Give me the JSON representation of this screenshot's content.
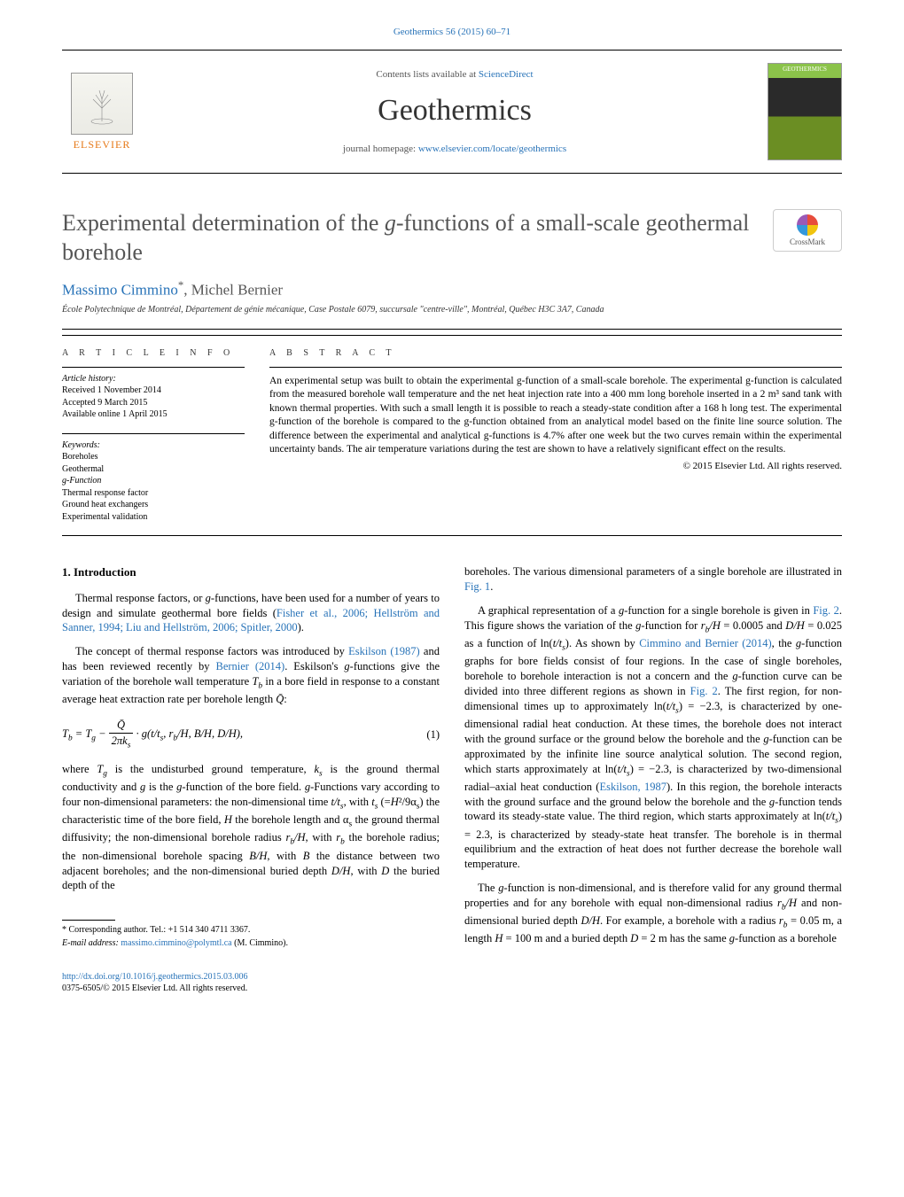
{
  "journal_ref": "Geothermics 56 (2015) 60–71",
  "header": {
    "publisher_name": "ELSEVIER",
    "contents_prefix": "Contents lists available at ",
    "contents_link": "ScienceDirect",
    "journal_name": "Geothermics",
    "homepage_prefix": "journal homepage: ",
    "homepage_link": "www.elsevier.com/locate/geothermics"
  },
  "crossmark_label": "CrossMark",
  "title_html": "Experimental determination of the <em>g</em>-functions of a small-scale geothermal borehole",
  "authors_html": "<a>Massimo Cimmino</a><sup>*</sup>, Michel Bernier",
  "affiliation": "École Polytechnique de Montréal, Département de génie mécanique, Case Postale 6079, succursale \"centre-ville\", Montréal, Québec H3C 3A7, Canada",
  "article_info": {
    "label": "A R T I C L E   I N F O",
    "history_label": "Article history:",
    "received": "Received 1 November 2014",
    "accepted": "Accepted 9 March 2015",
    "online": "Available online 1 April 2015",
    "keywords_label": "Keywords:",
    "keywords": [
      "Boreholes",
      "Geothermal",
      "g-Function",
      "Thermal response factor",
      "Ground heat exchangers",
      "Experimental validation"
    ]
  },
  "abstract": {
    "label": "A B S T R A C T",
    "text": "An experimental setup was built to obtain the experimental g-function of a small-scale borehole. The experimental g-function is calculated from the measured borehole wall temperature and the net heat injection rate into a 400 mm long borehole inserted in a 2 m³ sand tank with known thermal properties. With such a small length it is possible to reach a steady-state condition after a 168 h long test. The experimental g-function of the borehole is compared to the g-function obtained from an analytical model based on the finite line source solution. The difference between the experimental and analytical g-functions is 4.7% after one week but the two curves remain within the experimental uncertainty bands. The air temperature variations during the test are shown to have a relatively significant effect on the results.",
    "copyright": "© 2015 Elsevier Ltd. All rights reserved."
  },
  "body": {
    "section_heading": "1. Introduction",
    "p1_html": "Thermal response factors, or <em>g</em>-functions, have been used for a number of years to design and simulate geothermal bore fields (<a>Fisher et al., 2006; Hellström and Sanner, 1994; Liu and Hellström, 2006; Spitler, 2000</a>).",
    "p2_html": "The concept of thermal response factors was introduced by <a>Eskilson (1987)</a> and has been reviewed recently by <a>Bernier (2014)</a>. Eskilson's <em>g</em>-functions give the variation of the borehole wall temperature <em>T<sub>b</sub></em> in a bore field in response to a constant average heat extraction rate per borehole length <em>Q̄</em>:",
    "eq1_html": "<span class='equation-body'>T<sub>b</sub> = T<sub>g</sub> − <span class='frac'><span class='num'>Q̄</span><span class='den'>2πk<sub>s</sub></span></span> · g(t/t<sub>s</sub>, r<sub>b</sub>/H, B/H, D/H),</span><span class='equation-num'>(1)</span>",
    "p3_html": "where <em>T<sub>g</sub></em> is the undisturbed ground temperature, <em>k<sub>s</sub></em> is the ground thermal conductivity and <em>g</em> is the <em>g</em>-function of the bore field. <em>g</em>-Functions vary according to four non-dimensional parameters: the non-dimensional time <em>t/t<sub>s</sub></em>, with <em>t<sub>s</sub></em> (=<em>H</em>²/9α<sub>s</sub>) the characteristic time of the bore field, <em>H</em> the borehole length and α<sub>s</sub> the ground thermal diffusivity; the non-dimensional borehole radius <em>r<sub>b</sub>/H</em>, with <em>r<sub>b</sub></em> the borehole radius; the non-dimensional borehole spacing <em>B/H</em>, with <em>B</em> the distance between two adjacent boreholes; and the non-dimensional buried depth <em>D/H</em>, with <em>D</em> the buried depth of the",
    "p4_html": "boreholes. The various dimensional parameters of a single borehole are illustrated in <a>Fig. 1</a>.",
    "p5_html": "A graphical representation of a <em>g</em>-function for a single borehole is given in <a>Fig. 2</a>. This figure shows the variation of the <em>g</em>-function for <em>r<sub>b</sub>/H</em> = 0.0005 and <em>D/H</em> = 0.025 as a function of ln(<em>t/t<sub>s</sub></em>). As shown by <a>Cimmino and Bernier (2014)</a>, the <em>g</em>-function graphs for bore fields consist of four regions. In the case of single boreholes, borehole to borehole interaction is not a concern and the <em>g</em>-function curve can be divided into three different regions as shown in <a>Fig. 2</a>. The first region, for non-dimensional times up to approximately ln(<em>t/t<sub>s</sub></em>) = −2.3, is characterized by one-dimensional radial heat conduction. At these times, the borehole does not interact with the ground surface or the ground below the borehole and the <em>g</em>-function can be approximated by the infinite line source analytical solution. The second region, which starts approximately at ln(<em>t/t<sub>s</sub></em>) = −2.3, is characterized by two-dimensional radial–axial heat conduction (<a>Eskilson, 1987</a>). In this region, the borehole interacts with the ground surface and the ground below the borehole and the <em>g</em>-function tends toward its steady-state value. The third region, which starts approximately at ln(<em>t/t<sub>s</sub></em>) = 2.3, is characterized by steady-state heat transfer. The borehole is in thermal equilibrium and the extraction of heat does not further decrease the borehole wall temperature.",
    "p6_html": "The <em>g</em>-function is non-dimensional, and is therefore valid for any ground thermal properties and for any borehole with equal non-dimensional radius <em>r<sub>b</sub>/H</em> and non-dimensional buried depth <em>D/H</em>. For example, a borehole with a radius <em>r<sub>b</sub></em> = 0.05 m, a length <em>H</em> = 100 m and a buried depth <em>D</em> = 2 m has the same <em>g</em>-function as a borehole"
  },
  "footnotes": {
    "corr": "* Corresponding author. Tel.: +1 514 340 4711 3367.",
    "email_label": "E-mail address: ",
    "email": "massimo.cimmino@polymtl.ca",
    "email_suffix": " (M. Cimmino)."
  },
  "footer": {
    "doi": "http://dx.doi.org/10.1016/j.geothermics.2015.03.006",
    "issn_line": "0375-6505/© 2015 Elsevier Ltd. All rights reserved."
  },
  "colors": {
    "link": "#2873b8",
    "publisher_orange": "#e67817",
    "text": "#000000",
    "title_grey": "#555555"
  }
}
